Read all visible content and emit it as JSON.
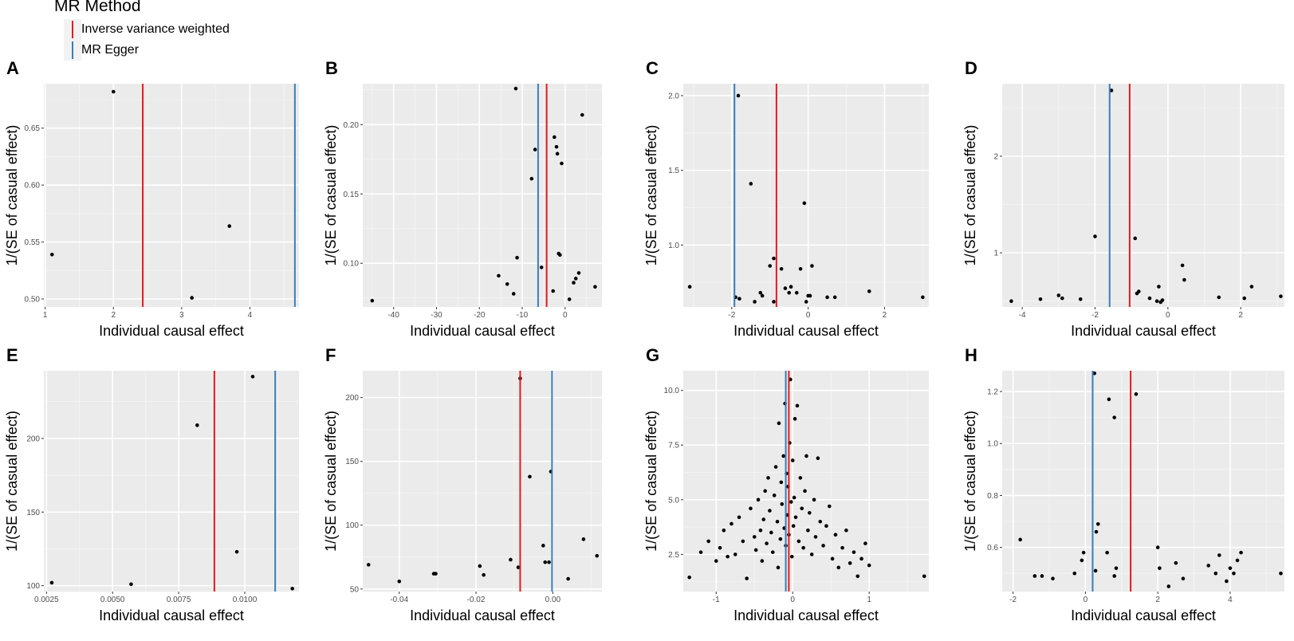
{
  "legend": {
    "title": "MR Method",
    "items": [
      {
        "label": "Inverse variance weighted",
        "color": "#e41a1c"
      },
      {
        "label": "MR Egger",
        "color": "#377eb8"
      }
    ]
  },
  "chart_data": [
    {
      "panel": "A",
      "type": "scatter",
      "xlabel": "Individual causal effect",
      "ylabel": "1/(SE of casual effect)",
      "xlim": [
        0.98,
        4.72
      ],
      "ylim": [
        0.493,
        0.689
      ],
      "xticks": [
        1,
        2,
        3,
        4
      ],
      "xtick_labels": [
        "1",
        "2",
        "3",
        "4"
      ],
      "yticks": [
        0.5,
        0.55,
        0.6,
        0.65
      ],
      "ytick_labels": [
        "0.50",
        "0.55",
        "0.60",
        "0.65"
      ],
      "ivw": 2.43,
      "egger": 4.66,
      "points": [
        [
          1.1,
          0.539
        ],
        [
          2.0,
          0.682
        ],
        [
          3.15,
          0.501
        ],
        [
          3.7,
          0.564
        ]
      ]
    },
    {
      "panel": "B",
      "type": "scatter",
      "xlabel": "Individual causal effect",
      "ylabel": "1/(SE of casual effect)",
      "xlim": [
        -47.2,
        8.6
      ],
      "ylim": [
        0.0685,
        0.2295
      ],
      "xticks": [
        -40,
        -30,
        -20,
        -10,
        0
      ],
      "xtick_labels": [
        "-40",
        "-30",
        "-20",
        "-10",
        "0"
      ],
      "yticks": [
        0.1,
        0.15,
        0.2
      ],
      "ytick_labels": [
        "0.10",
        "0.15",
        "0.20"
      ],
      "ivw": -4.3,
      "egger": -6.3,
      "points": [
        [
          -45,
          0.073
        ],
        [
          -15.5,
          0.091
        ],
        [
          -13.5,
          0.085
        ],
        [
          -12.0,
          0.078
        ],
        [
          -11.2,
          0.104
        ],
        [
          -11.5,
          0.226
        ],
        [
          -7.8,
          0.161
        ],
        [
          -7.0,
          0.182
        ],
        [
          -5.5,
          0.097
        ],
        [
          -2.8,
          0.08
        ],
        [
          -2.5,
          0.191
        ],
        [
          -2.0,
          0.184
        ],
        [
          -1.8,
          0.179
        ],
        [
          -1.5,
          0.107
        ],
        [
          -1.2,
          0.106
        ],
        [
          -0.8,
          0.172
        ],
        [
          1.0,
          0.074
        ],
        [
          2.0,
          0.086
        ],
        [
          2.5,
          0.089
        ],
        [
          3.2,
          0.093
        ],
        [
          4.0,
          0.207
        ],
        [
          7.0,
          0.083
        ]
      ]
    },
    {
      "panel": "C",
      "type": "scatter",
      "xlabel": "Individual causal effect",
      "ylabel": "1/(SE of casual effect)",
      "xlim": [
        -3.27,
        3.16
      ],
      "ylim": [
        0.585,
        2.08
      ],
      "xticks": [
        -2,
        0,
        2
      ],
      "xtick_labels": [
        "-2",
        "0",
        "2"
      ],
      "yticks": [
        1.0,
        1.5,
        2.0
      ],
      "ytick_labels": [
        "1.0",
        "1.5",
        "2.0"
      ],
      "ivw": -0.83,
      "egger": -1.93,
      "points": [
        [
          -3.1,
          0.72
        ],
        [
          -1.9,
          0.65
        ],
        [
          -1.8,
          0.64
        ],
        [
          -1.83,
          2.0
        ],
        [
          -1.5,
          1.41
        ],
        [
          -1.4,
          0.62
        ],
        [
          -1.25,
          0.68
        ],
        [
          -1.2,
          0.66
        ],
        [
          -1.0,
          0.86
        ],
        [
          -0.9,
          0.91
        ],
        [
          -0.9,
          0.62
        ],
        [
          -0.7,
          0.84
        ],
        [
          -0.6,
          0.71
        ],
        [
          -0.5,
          0.68
        ],
        [
          -0.45,
          0.72
        ],
        [
          -0.3,
          0.68
        ],
        [
          -0.2,
          0.84
        ],
        [
          -0.1,
          1.28
        ],
        [
          -0.05,
          0.62
        ],
        [
          0.0,
          0.66
        ],
        [
          0.05,
          0.66
        ],
        [
          0.1,
          0.86
        ],
        [
          0.5,
          0.65
        ],
        [
          0.7,
          0.65
        ],
        [
          1.6,
          0.69
        ],
        [
          3.0,
          0.65
        ]
      ]
    },
    {
      "panel": "D",
      "type": "scatter",
      "xlabel": "Individual causal effect",
      "ylabel": "1/(SE of casual effect)",
      "xlim": [
        -4.55,
        3.2
      ],
      "ylim": [
        0.44,
        2.75
      ],
      "xticks": [
        -4,
        -2,
        0,
        2
      ],
      "xtick_labels": [
        "-4",
        "-2",
        "0",
        "2"
      ],
      "yticks": [
        1,
        2
      ],
      "ytick_labels": [
        "1",
        "2"
      ],
      "ivw": -1.05,
      "egger": -1.6,
      "points": [
        [
          -4.3,
          0.5
        ],
        [
          -3.5,
          0.52
        ],
        [
          -3.0,
          0.56
        ],
        [
          -2.9,
          0.53
        ],
        [
          -2.4,
          0.52
        ],
        [
          -2.0,
          1.17
        ],
        [
          -1.55,
          2.68
        ],
        [
          -0.9,
          1.15
        ],
        [
          -0.85,
          0.58
        ],
        [
          -0.8,
          0.6
        ],
        [
          -0.5,
          0.53
        ],
        [
          -0.3,
          0.5
        ],
        [
          -0.25,
          0.65
        ],
        [
          -0.2,
          0.49
        ],
        [
          -0.15,
          0.51
        ],
        [
          0.4,
          0.87
        ],
        [
          0.45,
          0.72
        ],
        [
          1.4,
          0.54
        ],
        [
          2.1,
          0.53
        ],
        [
          2.3,
          0.65
        ],
        [
          3.1,
          0.55
        ]
      ]
    },
    {
      "panel": "E",
      "type": "scatter",
      "xlabel": "Individual causal effect",
      "ylabel": "1/(SE of casual effect)",
      "xlim": [
        0.0024,
        0.01205
      ],
      "ylim": [
        96,
        246
      ],
      "xticks": [
        0.0025,
        0.005,
        0.0075,
        0.01
      ],
      "xtick_labels": [
        "0.0025",
        "0.0050",
        "0.0075",
        "0.0100"
      ],
      "yticks": [
        100,
        150,
        200
      ],
      "ytick_labels": [
        "100",
        "150",
        "200"
      ],
      "ivw": 0.00885,
      "egger": 0.01115,
      "points": [
        [
          0.0027,
          102
        ],
        [
          0.0057,
          101
        ],
        [
          0.0082,
          209
        ],
        [
          0.0097,
          123
        ],
        [
          0.0103,
          242
        ],
        [
          0.0118,
          98
        ]
      ]
    },
    {
      "panel": "F",
      "type": "scatter",
      "xlabel": "Individual causal effect",
      "ylabel": "1/(SE of casual effect)",
      "xlim": [
        -0.0495,
        0.0128
      ],
      "ylim": [
        48,
        221
      ],
      "xticks": [
        -0.04,
        -0.02,
        0.0
      ],
      "xtick_labels": [
        "-0.04",
        "-0.02",
        "0.00"
      ],
      "yticks": [
        50,
        100,
        150,
        200
      ],
      "ytick_labels": [
        "50",
        "100",
        "150",
        "200"
      ],
      "ivw": -0.0085,
      "egger": -0.0002,
      "points": [
        [
          -0.048,
          69
        ],
        [
          -0.04,
          56
        ],
        [
          -0.031,
          62
        ],
        [
          -0.0305,
          62
        ],
        [
          -0.019,
          68
        ],
        [
          -0.018,
          61
        ],
        [
          -0.011,
          73
        ],
        [
          -0.0085,
          215
        ],
        [
          -0.009,
          67
        ],
        [
          -0.006,
          138
        ],
        [
          -0.0025,
          84
        ],
        [
          -0.002,
          71
        ],
        [
          -0.001,
          71
        ],
        [
          -0.0005,
          142
        ],
        [
          0.004,
          58
        ],
        [
          0.008,
          89
        ],
        [
          0.0115,
          76
        ]
      ]
    },
    {
      "panel": "G",
      "type": "scatter",
      "xlabel": "Individual causal effect",
      "ylabel": "1/(SE of casual effect)",
      "xlim": [
        -1.43,
        1.78
      ],
      "ylim": [
        0.8,
        10.9
      ],
      "xticks": [
        -1,
        0,
        1
      ],
      "xtick_labels": [
        "-1",
        "0",
        "1"
      ],
      "yticks": [
        2.5,
        5.0,
        7.5,
        10.0
      ],
      "ytick_labels": [
        "2.5",
        "5.0",
        "7.5",
        "10.0"
      ],
      "ivw": -0.05,
      "egger": -0.09,
      "points": [
        [
          -1.35,
          1.45
        ],
        [
          -1.2,
          2.6
        ],
        [
          -1.1,
          3.1
        ],
        [
          -1.0,
          2.2
        ],
        [
          -0.95,
          2.8
        ],
        [
          -0.9,
          3.6
        ],
        [
          -0.85,
          2.4
        ],
        [
          -0.8,
          3.9
        ],
        [
          -0.75,
          2.5
        ],
        [
          -0.7,
          4.2
        ],
        [
          -0.65,
          3.1
        ],
        [
          -0.6,
          1.4
        ],
        [
          -0.55,
          4.6
        ],
        [
          -0.5,
          3.3
        ],
        [
          -0.48,
          2.7
        ],
        [
          -0.45,
          5.0
        ],
        [
          -0.42,
          3.6
        ],
        [
          -0.4,
          2.2
        ],
        [
          -0.38,
          4.1
        ],
        [
          -0.36,
          5.4
        ],
        [
          -0.34,
          3.0
        ],
        [
          -0.32,
          6.0
        ],
        [
          -0.3,
          4.5
        ],
        [
          -0.28,
          3.5
        ],
        [
          -0.26,
          2.6
        ],
        [
          -0.24,
          5.2
        ],
        [
          -0.22,
          6.5
        ],
        [
          -0.2,
          4.0
        ],
        [
          -0.19,
          1.9
        ],
        [
          -0.18,
          8.5
        ],
        [
          -0.16,
          3.2
        ],
        [
          -0.15,
          5.8
        ],
        [
          -0.14,
          4.8
        ],
        [
          -0.12,
          7.0
        ],
        [
          -0.11,
          3.7
        ],
        [
          -0.1,
          9.4
        ],
        [
          -0.09,
          2.9
        ],
        [
          -0.08,
          6.2
        ],
        [
          -0.07,
          4.3
        ],
        [
          -0.06,
          5.6
        ],
        [
          -0.05,
          3.4
        ],
        [
          -0.04,
          7.6
        ],
        [
          -0.03,
          10.5
        ],
        [
          -0.02,
          4.9
        ],
        [
          -0.01,
          2.4
        ],
        [
          0.0,
          6.8
        ],
        [
          0.01,
          3.8
        ],
        [
          0.02,
          5.1
        ],
        [
          0.03,
          8.7
        ],
        [
          0.04,
          4.2
        ],
        [
          0.06,
          9.3
        ],
        [
          0.08,
          3.1
        ],
        [
          0.1,
          6.0
        ],
        [
          0.12,
          4.6
        ],
        [
          0.14,
          2.8
        ],
        [
          0.16,
          5.4
        ],
        [
          0.18,
          7.0
        ],
        [
          0.2,
          3.6
        ],
        [
          0.22,
          4.4
        ],
        [
          0.25,
          2.5
        ],
        [
          0.28,
          5.0
        ],
        [
          0.3,
          3.3
        ],
        [
          0.33,
          6.9
        ],
        [
          0.36,
          4.0
        ],
        [
          0.4,
          2.9
        ],
        [
          0.44,
          3.8
        ],
        [
          0.48,
          4.7
        ],
        [
          0.52,
          2.3
        ],
        [
          0.56,
          3.4
        ],
        [
          0.6,
          1.9
        ],
        [
          0.65,
          2.8
        ],
        [
          0.7,
          3.6
        ],
        [
          0.75,
          2.1
        ],
        [
          0.8,
          2.6
        ],
        [
          0.85,
          1.5
        ],
        [
          0.9,
          2.3
        ],
        [
          0.95,
          3.0
        ],
        [
          1.0,
          2.0
        ],
        [
          1.72,
          1.5
        ]
      ]
    },
    {
      "panel": "H",
      "type": "scatter",
      "xlabel": "Individual causal effect",
      "ylabel": "1/(SE of casual effect)",
      "xlim": [
        -2.3,
        5.5
      ],
      "ylim": [
        0.43,
        1.28
      ],
      "xticks": [
        -2,
        0,
        2,
        4
      ],
      "xtick_labels": [
        "-2",
        "0",
        "2",
        "4"
      ],
      "yticks": [
        0.6,
        0.8,
        1.0,
        1.2
      ],
      "ytick_labels": [
        "0.6",
        "0.8",
        "1.0",
        "1.2"
      ],
      "ivw": 1.25,
      "egger": 0.2,
      "points": [
        [
          -1.8,
          0.63
        ],
        [
          -1.4,
          0.49
        ],
        [
          -1.2,
          0.49
        ],
        [
          -0.9,
          0.48
        ],
        [
          -0.3,
          0.5
        ],
        [
          -0.1,
          0.55
        ],
        [
          -0.05,
          0.58
        ],
        [
          0.25,
          1.27
        ],
        [
          0.3,
          0.66
        ],
        [
          0.35,
          0.69
        ],
        [
          0.28,
          0.51
        ],
        [
          0.6,
          0.58
        ],
        [
          0.65,
          1.17
        ],
        [
          0.8,
          1.1
        ],
        [
          0.85,
          0.52
        ],
        [
          0.8,
          0.49
        ],
        [
          1.4,
          1.19
        ],
        [
          2.0,
          0.6
        ],
        [
          2.05,
          0.52
        ],
        [
          2.3,
          0.45
        ],
        [
          2.5,
          0.54
        ],
        [
          2.7,
          0.48
        ],
        [
          3.4,
          0.53
        ],
        [
          3.6,
          0.5
        ],
        [
          3.7,
          0.57
        ],
        [
          3.9,
          0.47
        ],
        [
          4.0,
          0.52
        ],
        [
          4.1,
          0.5
        ],
        [
          4.2,
          0.55
        ],
        [
          4.3,
          0.58
        ],
        [
          5.4,
          0.5
        ]
      ]
    }
  ]
}
